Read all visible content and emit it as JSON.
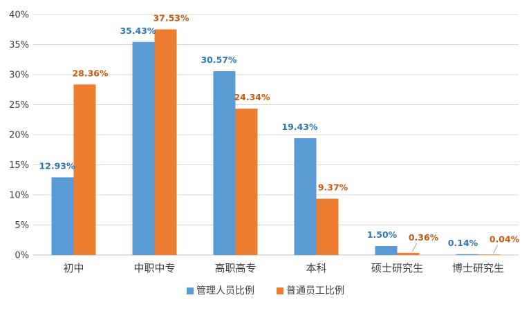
{
  "chart_data": {
    "type": "bar",
    "categories": [
      "初中",
      "中职中专",
      "高职高专",
      "本科",
      "硕士研究生",
      "博士研究生"
    ],
    "series": [
      {
        "name": "管理人员比例",
        "values": [
          12.93,
          35.43,
          30.57,
          19.43,
          1.5,
          0.14
        ],
        "labels": [
          "12.93%",
          "35.43%",
          "30.57%",
          "19.43%",
          "1.50%",
          "0.14%"
        ],
        "color": "#5b9bd5",
        "label_color": "#2e75b6"
      },
      {
        "name": "普通员工比例",
        "values": [
          28.36,
          37.53,
          24.34,
          9.37,
          0.36,
          0.04
        ],
        "labels": [
          "28.36%",
          "37.53%",
          "24.34%",
          "9.37%",
          "0.36%",
          "0.04%"
        ],
        "color": "#ed7d31",
        "label_color": "#c55a11"
      }
    ],
    "ylim": [
      0,
      40
    ],
    "yticks": [
      0,
      5,
      10,
      15,
      20,
      25,
      30,
      35,
      40
    ],
    "ytick_labels": [
      "0%",
      "5%",
      "10%",
      "15%",
      "20%",
      "25%",
      "30%",
      "35%",
      "40%"
    ],
    "grid": true,
    "legend_position": "bottom",
    "gridline_color": "#d9d9d9",
    "axis_color": "#bfbfbf"
  }
}
